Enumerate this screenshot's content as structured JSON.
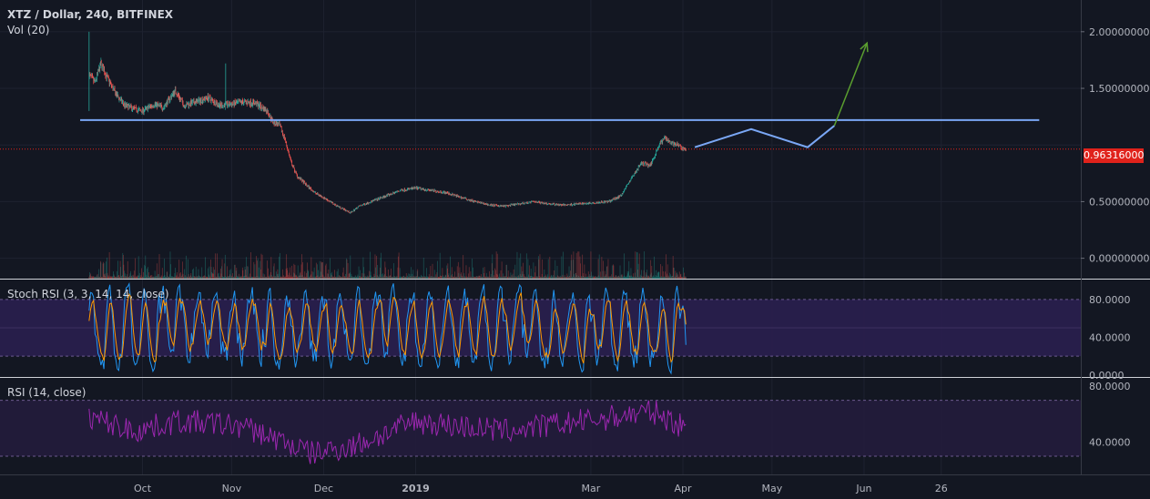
{
  "header": {
    "symbol_line": "XTZ / Dollar, 240, BITFINEX",
    "volume_label": "Vol (20)"
  },
  "panels": {
    "stoch_label": "Stoch RSI (3, 3, 14, 14, close)",
    "rsi_label": "RSI (14, close)"
  },
  "current_price": "0.96316000",
  "colors": {
    "background": "#131722",
    "up": "#26a69a",
    "down": "#ef5350",
    "horizontal_line": "#7aa7f5",
    "arrow": "#5a9e2f",
    "price_line": "#e0221b",
    "stoch_band": "#2a1f4f",
    "stoch_k": "#2196f3",
    "stoch_d": "#ff9800",
    "rsi_line": "#9c27b0",
    "rsi_band": "#241c3c"
  },
  "chart_data": [
    {
      "type": "candlestick",
      "title": "XTZ / Dollar, 240, BITFINEX",
      "y_ticks": [
        "2.00000000",
        "1.50000000",
        "0.50000000",
        "0.00000000"
      ],
      "y_tick_values": [
        2.0,
        1.5,
        0.5,
        0.0
      ],
      "ylim": [
        -0.18,
        2.28
      ],
      "x_ticks": [
        "Oct",
        "Nov",
        "Dec",
        "2019",
        "Mar",
        "Apr",
        "May",
        "Jun",
        "26"
      ],
      "x_tick_days": [
        18,
        48,
        79,
        110,
        169,
        200,
        230,
        261,
        287
      ],
      "xlim": [
        -30,
        334
      ],
      "close_path": [
        [
          0,
          1.62
        ],
        [
          2,
          1.55
        ],
        [
          4,
          1.72
        ],
        [
          6,
          1.6
        ],
        [
          9,
          1.45
        ],
        [
          12,
          1.35
        ],
        [
          15,
          1.32
        ],
        [
          18,
          1.3
        ],
        [
          22,
          1.36
        ],
        [
          25,
          1.33
        ],
        [
          29,
          1.48
        ],
        [
          32,
          1.35
        ],
        [
          36,
          1.38
        ],
        [
          40,
          1.42
        ],
        [
          44,
          1.35
        ],
        [
          48,
          1.36
        ],
        [
          52,
          1.38
        ],
        [
          56,
          1.37
        ],
        [
          60,
          1.3
        ],
        [
          62,
          1.2
        ],
        [
          64,
          1.18
        ],
        [
          66,
          1.05
        ],
        [
          68,
          0.85
        ],
        [
          70,
          0.73
        ],
        [
          73,
          0.65
        ],
        [
          76,
          0.58
        ],
        [
          80,
          0.52
        ],
        [
          83,
          0.47
        ],
        [
          86,
          0.43
        ],
        [
          88,
          0.4
        ],
        [
          91,
          0.46
        ],
        [
          95,
          0.5
        ],
        [
          100,
          0.55
        ],
        [
          105,
          0.6
        ],
        [
          110,
          0.62
        ],
        [
          115,
          0.6
        ],
        [
          120,
          0.58
        ],
        [
          125,
          0.54
        ],
        [
          130,
          0.5
        ],
        [
          135,
          0.47
        ],
        [
          140,
          0.46
        ],
        [
          145,
          0.48
        ],
        [
          150,
          0.5
        ],
        [
          155,
          0.48
        ],
        [
          160,
          0.47
        ],
        [
          165,
          0.48
        ],
        [
          170,
          0.49
        ],
        [
          175,
          0.5
        ],
        [
          179,
          0.55
        ],
        [
          183,
          0.72
        ],
        [
          186,
          0.84
        ],
        [
          189,
          0.82
        ],
        [
          192,
          1.0
        ],
        [
          194,
          1.07
        ],
        [
          196,
          1.02
        ],
        [
          198,
          1.0
        ],
        [
          200,
          0.97
        ],
        [
          201,
          0.96
        ]
      ],
      "horizontal_line": {
        "y": 1.22,
        "from_day": -3,
        "to_day": 320
      },
      "current_price_value": 0.96316,
      "projection_path": [
        [
          204,
          0.98
        ],
        [
          223,
          1.14
        ],
        [
          242,
          0.98
        ],
        [
          251,
          1.17
        ]
      ],
      "arrow": {
        "from": [
          251,
          1.17
        ],
        "to": [
          262,
          1.9
        ]
      },
      "x_range_days": [
        0,
        201
      ]
    },
    {
      "type": "bar",
      "title": "Vol (20)",
      "note": "volume histogram at bottom of price pane, no axis labels"
    },
    {
      "type": "line",
      "title": "Stoch RSI (3, 3, 14, 14, close)",
      "y_ticks": [
        "80.0000",
        "40.0000",
        "0.0000"
      ],
      "y_tick_values": [
        80,
        40,
        0
      ],
      "ylim": [
        -2,
        101
      ],
      "band": [
        20,
        80
      ],
      "series": [
        {
          "name": "%K",
          "pattern": "oscillating 0–100"
        },
        {
          "name": "%D",
          "pattern": "oscillating 0–100"
        }
      ]
    },
    {
      "type": "line",
      "title": "RSI (14, close)",
      "y_ticks": [
        "80.0000",
        "40.0000"
      ],
      "y_tick_values": [
        80,
        40
      ],
      "ylim": [
        17,
        86
      ],
      "band": [
        30,
        70
      ],
      "series": [
        {
          "name": "RSI",
          "range": [
            20,
            80
          ]
        }
      ]
    }
  ]
}
